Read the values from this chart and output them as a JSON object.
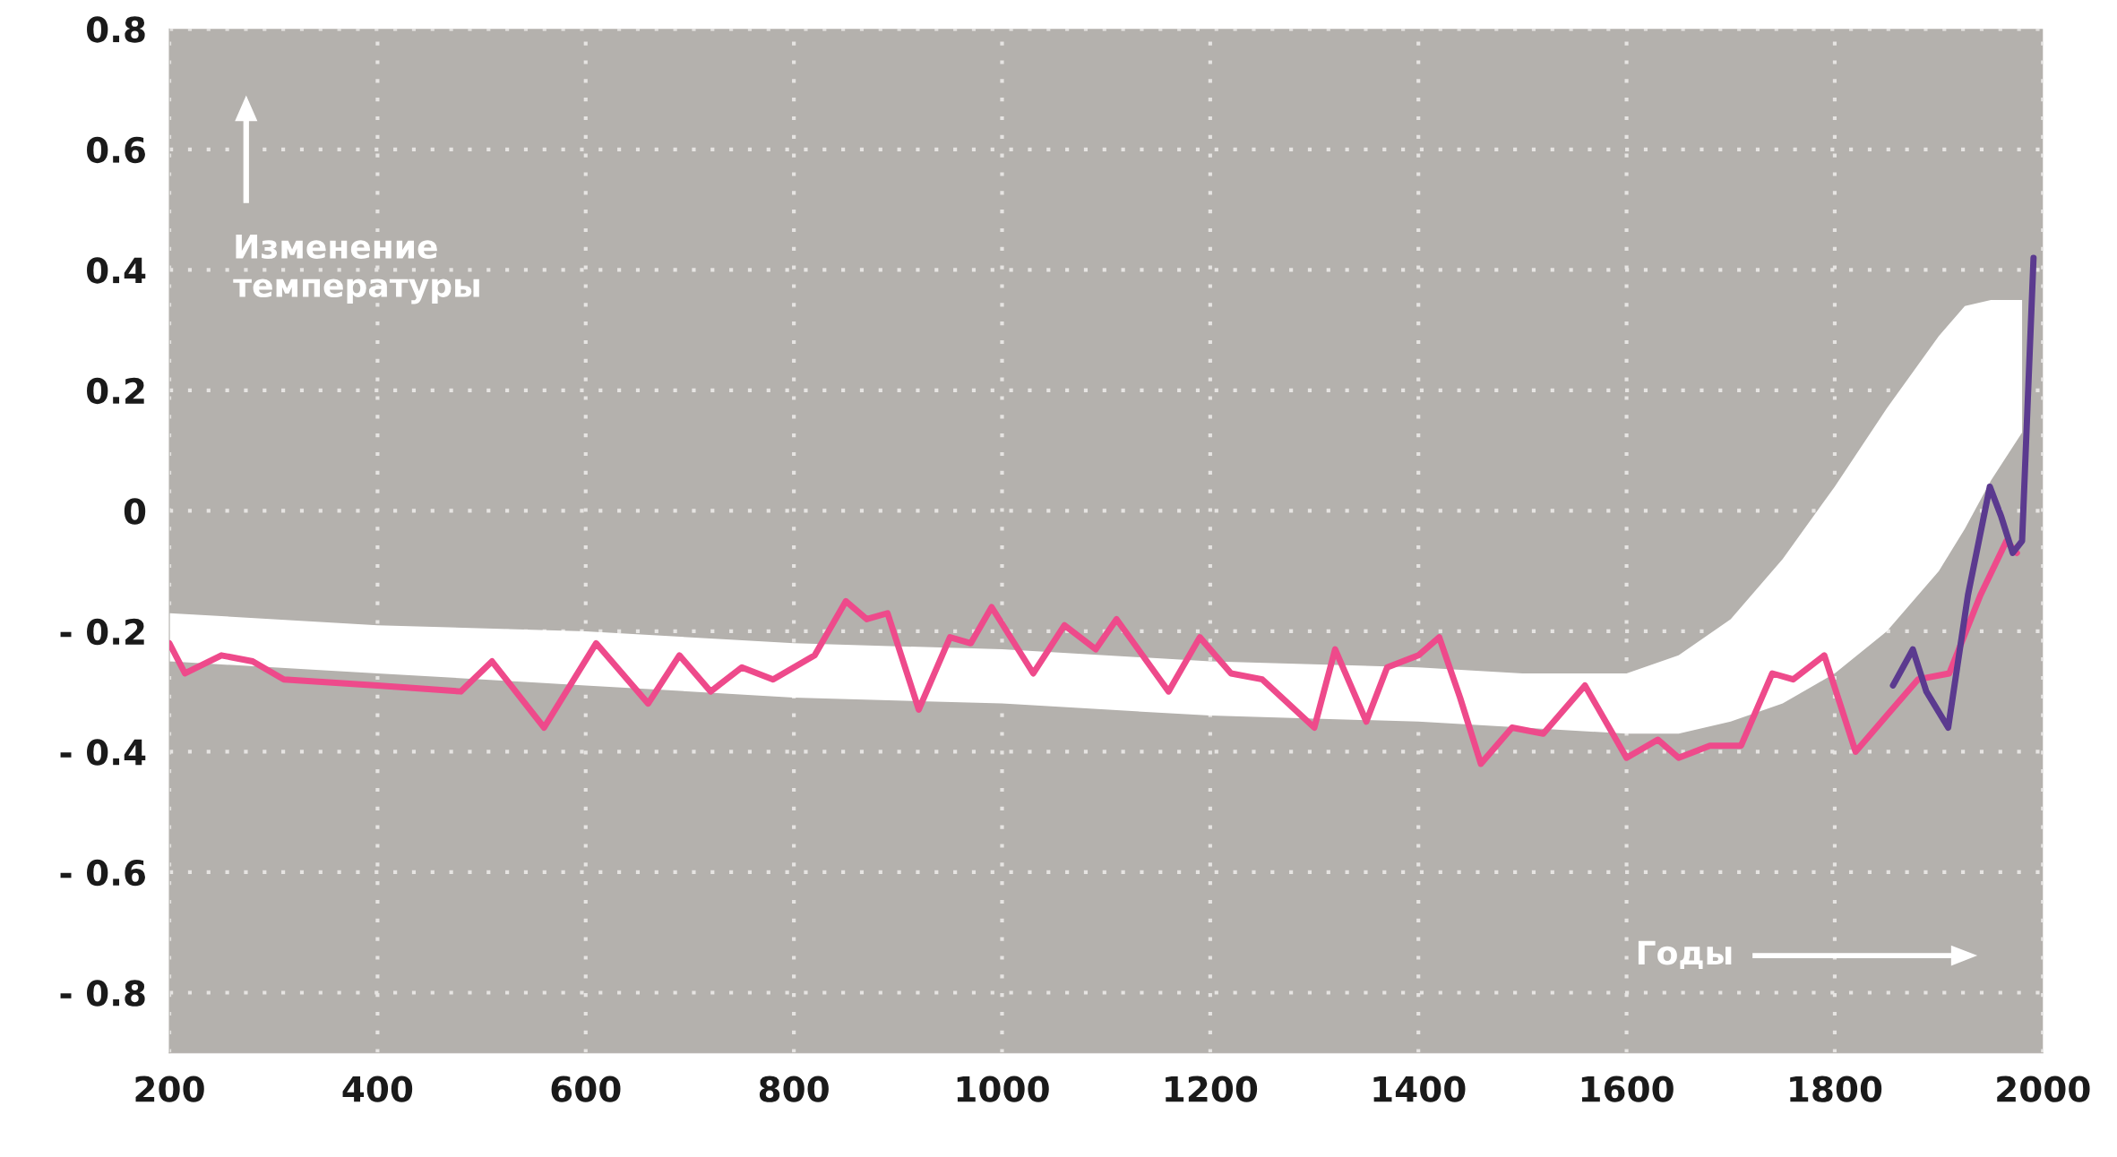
{
  "chart_data": {
    "type": "line",
    "xlabel": "Годы",
    "ylabel": "Изменение\nтемпературы",
    "xlim": [
      200,
      2000
    ],
    "ylim": [
      -0.9,
      0.8
    ],
    "xticks": [
      200,
      400,
      600,
      800,
      1000,
      1200,
      1400,
      1600,
      1800,
      2000
    ],
    "yticks": [
      {
        "value": -0.8,
        "label": "- 0.8"
      },
      {
        "value": -0.6,
        "label": "- 0.6"
      },
      {
        "value": -0.4,
        "label": "- 0.4"
      },
      {
        "value": -0.2,
        "label": "- 0.2"
      },
      0,
      0.2,
      0.4,
      0.6,
      0.8
    ],
    "grid": true,
    "line_style": "solid",
    "series": [
      {
        "type": "area",
        "color": "#ffffff",
        "x": [
          200,
          400,
          600,
          800,
          1000,
          1200,
          1400,
          1500,
          1600,
          1650,
          1700,
          1750,
          1800,
          1850,
          1900,
          1925,
          1950,
          1980
        ],
        "lower": [
          -0.25,
          -0.27,
          -0.29,
          -0.31,
          -0.32,
          -0.34,
          -0.35,
          -0.36,
          -0.37,
          -0.37,
          -0.35,
          -0.32,
          -0.27,
          -0.2,
          -0.1,
          -0.03,
          0.05,
          0.13
        ],
        "upper": [
          -0.17,
          -0.19,
          -0.2,
          -0.22,
          -0.23,
          -0.25,
          -0.26,
          -0.27,
          -0.27,
          -0.24,
          -0.18,
          -0.08,
          0.04,
          0.17,
          0.29,
          0.34,
          0.35,
          0.35
        ],
        "values": [
          null,
          null,
          null,
          null,
          null,
          null,
          null,
          null,
          null,
          null,
          null,
          null,
          null,
          null,
          null,
          null,
          null,
          null
        ]
      },
      {
        "color": "#ee4a8b",
        "x": [
          200,
          215,
          250,
          280,
          310,
          400,
          480,
          510,
          560,
          610,
          660,
          690,
          720,
          750,
          780,
          820,
          850,
          870,
          890,
          920,
          950,
          970,
          990,
          1030,
          1060,
          1090,
          1110,
          1160,
          1190,
          1220,
          1250,
          1300,
          1320,
          1350,
          1370,
          1400,
          1420,
          1440,
          1460,
          1490,
          1520,
          1560,
          1600,
          1630,
          1650,
          1680,
          1710,
          1740,
          1760,
          1790,
          1820,
          1850,
          1880,
          1910,
          1940,
          1965,
          1975
        ],
        "values": [
          -0.22,
          -0.27,
          -0.24,
          -0.25,
          -0.28,
          -0.29,
          -0.3,
          -0.25,
          -0.36,
          -0.22,
          -0.32,
          -0.24,
          -0.3,
          -0.26,
          -0.28,
          -0.24,
          -0.15,
          -0.18,
          -0.17,
          -0.33,
          -0.21,
          -0.22,
          -0.16,
          -0.27,
          -0.19,
          -0.23,
          -0.18,
          -0.3,
          -0.21,
          -0.27,
          -0.28,
          -0.36,
          -0.23,
          -0.35,
          -0.26,
          -0.24,
          -0.21,
          -0.31,
          -0.42,
          -0.36,
          -0.37,
          -0.29,
          -0.41,
          -0.38,
          -0.41,
          -0.39,
          -0.39,
          -0.27,
          -0.28,
          -0.24,
          -0.4,
          -0.34,
          -0.28,
          -0.27,
          -0.14,
          -0.05,
          -0.07
        ]
      },
      {
        "color": "#5b3a8f",
        "x": [
          1856,
          1875,
          1888,
          1909,
          1928,
          1949,
          1960,
          1971,
          1980,
          1991
        ],
        "values": [
          -0.29,
          -0.23,
          -0.3,
          -0.36,
          -0.14,
          0.04,
          -0.01,
          -0.07,
          -0.05,
          0.42
        ]
      }
    ]
  }
}
